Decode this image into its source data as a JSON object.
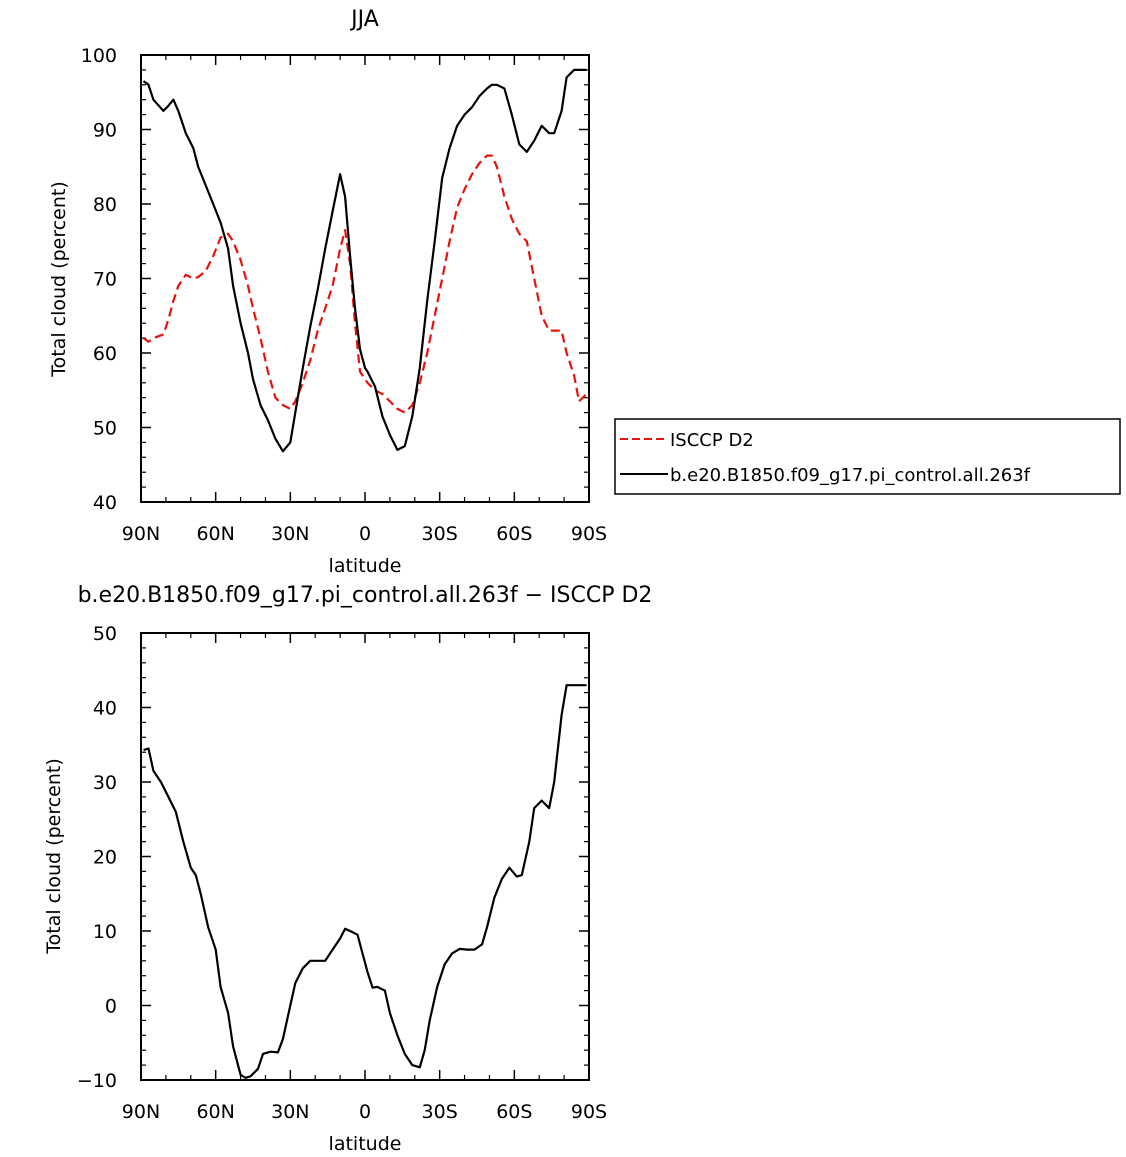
{
  "chart_data": [
    {
      "type": "line",
      "title": "JJA",
      "xlabel": "latitude",
      "ylabel": "Total cloud (percent)",
      "xlim": [
        -90,
        90
      ],
      "ylim": [
        40,
        100
      ],
      "x_ticks": [
        -90,
        -60,
        -30,
        0,
        30,
        60,
        90
      ],
      "x_tick_labels": [
        "90N",
        "60N",
        "30N",
        "0",
        "30S",
        "60S",
        "90S"
      ],
      "y_ticks": [
        40,
        50,
        60,
        70,
        80,
        90,
        100
      ],
      "y_tick_labels": [
        "40",
        "50",
        "60",
        "70",
        "80",
        "90",
        "100"
      ],
      "legend_position": "right",
      "series": [
        {
          "name": "ISCCP D2",
          "color": "#e8120c",
          "dash": "dashed",
          "x": [
            -89,
            -87,
            -85,
            -81,
            -79,
            -77,
            -75,
            -72,
            -69,
            -67,
            -64,
            -61,
            -58,
            -55,
            -53,
            -50,
            -47,
            -45,
            -42,
            -39,
            -36,
            -33,
            -30,
            -28,
            -25,
            -22,
            -19,
            -16,
            -13,
            -10,
            -8,
            -6,
            -4,
            -2,
            0,
            1,
            4,
            7,
            10,
            13,
            16,
            19,
            22,
            25,
            28,
            31,
            34,
            37,
            40,
            43,
            46,
            49,
            51,
            53,
            56,
            59,
            62,
            65,
            68,
            71,
            74,
            76,
            79,
            81,
            84,
            86,
            89
          ],
          "y": [
            62,
            61.5,
            62,
            62.5,
            64.5,
            67,
            69,
            70.5,
            70,
            70.2,
            71,
            73,
            75.5,
            76,
            75,
            72.5,
            69,
            66,
            62,
            57.5,
            54,
            53,
            52.5,
            53.5,
            56,
            59,
            63,
            66,
            69,
            74,
            76.5,
            72,
            64,
            57.5,
            56.5,
            56,
            55,
            54.5,
            53.5,
            52.5,
            52,
            53,
            56,
            60,
            65,
            70,
            75,
            79.5,
            82,
            84,
            85.5,
            86.5,
            86.5,
            85,
            81,
            78,
            76,
            75,
            70,
            65,
            63,
            63,
            63,
            60,
            57,
            53.5,
            54.5
          ]
        },
        {
          "name": "b.e20.B1850.f09_g17.pi_control.all.263f",
          "color": "#000000",
          "dash": "solid",
          "x": [
            -89,
            -87,
            -85,
            -81,
            -79,
            -77,
            -75,
            -72,
            -69,
            -67,
            -64,
            -61,
            -58,
            -55,
            -53,
            -50,
            -47,
            -45,
            -42,
            -39,
            -36,
            -33,
            -30,
            -28,
            -25,
            -22,
            -19,
            -16,
            -13,
            -10,
            -8,
            -6,
            -4,
            -2,
            0,
            1,
            4,
            7,
            10,
            13,
            16,
            19,
            22,
            25,
            28,
            31,
            34,
            37,
            40,
            43,
            46,
            49,
            51,
            53,
            56,
            59,
            62,
            65,
            68,
            71,
            74,
            76,
            79,
            81,
            84,
            86,
            89
          ],
          "y": [
            96.5,
            96,
            94,
            92.5,
            93.2,
            94,
            92.5,
            89.5,
            87.5,
            85,
            82.5,
            80,
            77.5,
            74,
            69,
            64,
            60,
            56.5,
            53,
            51,
            48.5,
            46.8,
            48,
            52,
            58,
            63.5,
            68.5,
            74,
            79,
            84,
            81,
            73,
            66,
            60.5,
            58,
            57.5,
            55.5,
            51.5,
            49,
            47,
            47.5,
            51.5,
            58,
            67,
            75,
            83.5,
            87.5,
            90.5,
            92,
            93,
            94.5,
            95.5,
            96,
            96,
            95.5,
            92,
            88,
            87,
            88.5,
            90.5,
            89.5,
            89.5,
            92.5,
            97,
            98,
            98,
            98
          ]
        }
      ]
    },
    {
      "type": "line",
      "title": "b.e20.B1850.f09_g17.pi_control.all.263f − ISCCP D2",
      "xlabel": "latitude",
      "ylabel": "Total cloud (percent)",
      "xlim": [
        -90,
        90
      ],
      "ylim": [
        -10,
        50
      ],
      "x_ticks": [
        -90,
        -60,
        -30,
        0,
        30,
        60,
        90
      ],
      "x_tick_labels": [
        "90N",
        "60N",
        "30N",
        "0",
        "30S",
        "60S",
        "90S"
      ],
      "y_ticks": [
        -10,
        0,
        10,
        20,
        30,
        40,
        50
      ],
      "y_tick_labels": [
        "−10",
        "0",
        "10",
        "20",
        "30",
        "40",
        "50"
      ],
      "series": [
        {
          "color": "#000000",
          "dash": "solid",
          "x": [
            -89,
            -87,
            -85,
            -82,
            -79,
            -76,
            -73,
            -70,
            -68,
            -66,
            -63,
            -60,
            -58,
            -55,
            -53,
            -50,
            -48,
            -46,
            -43,
            -41,
            -38,
            -35,
            -33,
            -30,
            -28,
            -25,
            -22,
            -19,
            -16,
            -13,
            -10,
            -8,
            -6,
            -3,
            -1,
            1,
            3,
            5,
            8,
            10,
            13,
            16,
            19,
            22,
            24,
            26,
            29,
            32,
            35,
            38,
            41,
            44,
            47,
            49,
            52,
            55,
            58,
            61,
            63,
            66,
            68,
            71,
            74,
            76,
            79,
            81,
            84,
            86,
            89
          ],
          "y": [
            34.3,
            34.5,
            31.5,
            30,
            28,
            26,
            22,
            18.5,
            17.5,
            15,
            10.5,
            7.5,
            2.5,
            -1,
            -5.5,
            -9.3,
            -9.7,
            -9.5,
            -8.5,
            -6.5,
            -6.2,
            -6.3,
            -4.5,
            0,
            3,
            5,
            6,
            6,
            6,
            7.5,
            9,
            10.3,
            10,
            9.5,
            7,
            4.5,
            2.4,
            2.5,
            2,
            -1,
            -4,
            -6.5,
            -8,
            -8.3,
            -6,
            -2,
            2.5,
            5.5,
            7,
            7.6,
            7.5,
            7.5,
            8.2,
            10.5,
            14.5,
            17,
            18.5,
            17.3,
            17.5,
            22,
            26.5,
            27.5,
            26.5,
            30,
            39,
            43,
            43,
            43,
            43
          ]
        }
      ]
    }
  ]
}
